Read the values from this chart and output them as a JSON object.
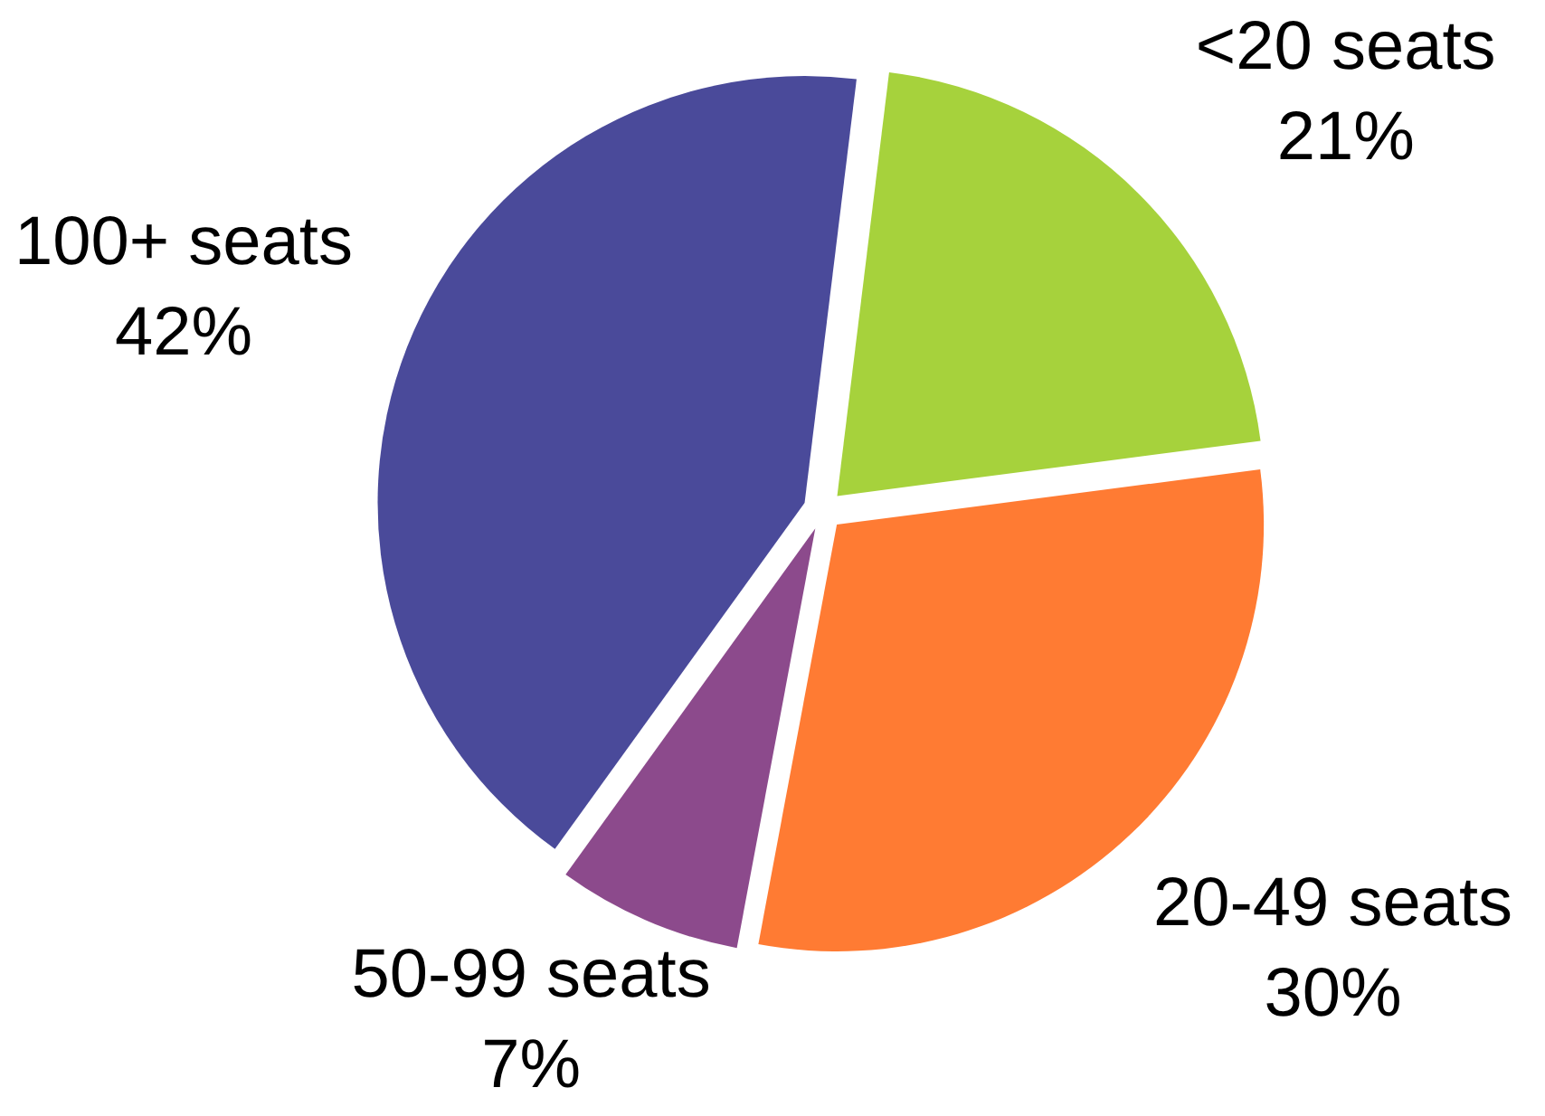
{
  "chart_data": {
    "type": "pie",
    "categories": [
      "<20 seats",
      "20-49 seats",
      "50-99 seats",
      "100+ seats"
    ],
    "values": [
      21,
      30,
      7,
      42
    ],
    "value_labels": [
      "21%",
      "30%",
      "7%",
      "42%"
    ],
    "colors": [
      "#a6d23c",
      "#ff7b33",
      "#8c4a8c",
      "#4a4a9a"
    ]
  }
}
